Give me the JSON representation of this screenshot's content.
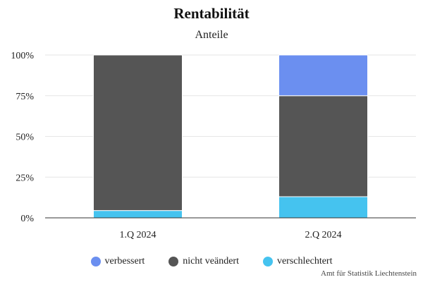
{
  "chart_data": {
    "type": "bar",
    "stacked": true,
    "title": "Rentabilität",
    "subtitle": "Anteile",
    "categories": [
      "1.Q 2024",
      "2.Q 2024"
    ],
    "series": [
      {
        "name": "verbessert",
        "color": "#6b8ff0",
        "values": [
          0,
          25
        ]
      },
      {
        "name": "nicht veändert",
        "color": "#555555",
        "values": [
          95.5,
          62
        ]
      },
      {
        "name": "verschlechtert",
        "color": "#45c3ef",
        "values": [
          4.5,
          13
        ]
      }
    ],
    "stack_order_bottom_to_top": [
      "verschlechtert",
      "nicht veändert",
      "verbessert"
    ],
    "ylim": [
      0,
      100
    ],
    "yticks": [
      "0%",
      "25%",
      "50%",
      "75%",
      "100%"
    ],
    "ytick_values": [
      0,
      25,
      50,
      75,
      100
    ],
    "grid": true,
    "legend_position": "bottom-center"
  },
  "credits": "Amt für Statistik Liechtenstein"
}
